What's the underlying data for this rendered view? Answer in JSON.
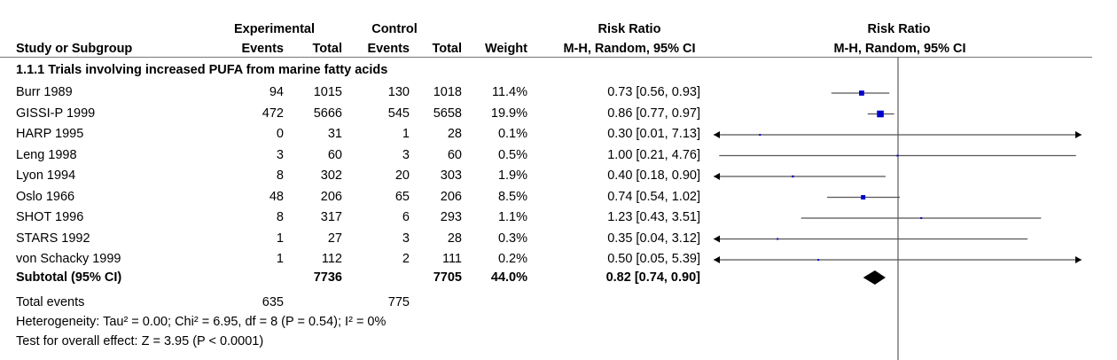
{
  "header": {
    "experimental": "Experimental",
    "control": "Control",
    "rr_left": "Risk Ratio",
    "rr_right": "Risk Ratio",
    "study_col": "Study or Subgroup",
    "events": "Events",
    "total": "Total",
    "events2": "Events",
    "total2": "Total",
    "weight": "Weight",
    "method_left": "M-H, Random, 95% CI",
    "method_right": "M-H, Random, 95% CI"
  },
  "subgroup_title": "1.1.1 Trials involving increased PUFA from marine fatty acids",
  "studies": [
    {
      "name": "Burr 1989",
      "exp_events": "94",
      "exp_total": "1015",
      "ctl_events": "130",
      "ctl_total": "1018",
      "weight": "11.4%",
      "ci_text": "0.73 [0.56, 0.93]"
    },
    {
      "name": "GISSI-P 1999",
      "exp_events": "472",
      "exp_total": "5666",
      "ctl_events": "545",
      "ctl_total": "5658",
      "weight": "19.9%",
      "ci_text": "0.86 [0.77, 0.97]"
    },
    {
      "name": "HARP 1995",
      "exp_events": "0",
      "exp_total": "31",
      "ctl_events": "1",
      "ctl_total": "28",
      "weight": "0.1%",
      "ci_text": "0.30 [0.01, 7.13]"
    },
    {
      "name": "Leng 1998",
      "exp_events": "3",
      "exp_total": "60",
      "ctl_events": "3",
      "ctl_total": "60",
      "weight": "0.5%",
      "ci_text": "1.00 [0.21, 4.76]"
    },
    {
      "name": "Lyon 1994",
      "exp_events": "8",
      "exp_total": "302",
      "ctl_events": "20",
      "ctl_total": "303",
      "weight": "1.9%",
      "ci_text": "0.40 [0.18, 0.90]"
    },
    {
      "name": "Oslo 1966",
      "exp_events": "48",
      "exp_total": "206",
      "ctl_events": "65",
      "ctl_total": "206",
      "weight": "8.5%",
      "ci_text": "0.74 [0.54, 1.02]"
    },
    {
      "name": "SHOT 1996",
      "exp_events": "8",
      "exp_total": "317",
      "ctl_events": "6",
      "ctl_total": "293",
      "weight": "1.1%",
      "ci_text": "1.23 [0.43, 3.51]"
    },
    {
      "name": "STARS 1992",
      "exp_events": "1",
      "exp_total": "27",
      "ctl_events": "3",
      "ctl_total": "28",
      "weight": "0.3%",
      "ci_text": "0.35 [0.04, 3.12]"
    },
    {
      "name": "von Schacky 1999",
      "exp_events": "1",
      "exp_total": "112",
      "ctl_events": "2",
      "ctl_total": "111",
      "weight": "0.2%",
      "ci_text": "0.50 [0.05, 5.39]"
    }
  ],
  "subtotal": {
    "name": "Subtotal (95% CI)",
    "exp_total": "7736",
    "ctl_total": "7705",
    "weight": "44.0%",
    "ci_text": "0.82 [0.74, 0.90]"
  },
  "total_events": {
    "label": "Total events",
    "exp": "635",
    "ctl": "775"
  },
  "heterogeneity": "Heterogeneity: Tau² = 0.00; Chi² = 6.95, df = 8 (P = 0.54); I² = 0%",
  "overall_effect": "Test for overall effect: Z = 3.95 (P < 0.0001)",
  "colors": {
    "marker": "#0000cc",
    "line": "#555555",
    "diamond": "#000000"
  },
  "chart_data": {
    "type": "forest",
    "scale": "log",
    "xlim": [
      0.2,
      5
    ],
    "null_value": 1,
    "series": [
      {
        "study": "Burr 1989",
        "rr": 0.73,
        "lo": 0.56,
        "hi": 0.93,
        "weight": 11.4
      },
      {
        "study": "GISSI-P 1999",
        "rr": 0.86,
        "lo": 0.77,
        "hi": 0.97,
        "weight": 19.9
      },
      {
        "study": "HARP 1995",
        "rr": 0.3,
        "lo": 0.01,
        "hi": 7.13,
        "weight": 0.1
      },
      {
        "study": "Leng 1998",
        "rr": 1.0,
        "lo": 0.21,
        "hi": 4.76,
        "weight": 0.5
      },
      {
        "study": "Lyon 1994",
        "rr": 0.4,
        "lo": 0.18,
        "hi": 0.9,
        "weight": 1.9
      },
      {
        "study": "Oslo 1966",
        "rr": 0.74,
        "lo": 0.54,
        "hi": 1.02,
        "weight": 8.5
      },
      {
        "study": "SHOT 1996",
        "rr": 1.23,
        "lo": 0.43,
        "hi": 3.51,
        "weight": 1.1
      },
      {
        "study": "STARS 1992",
        "rr": 0.35,
        "lo": 0.04,
        "hi": 3.12,
        "weight": 0.3
      },
      {
        "study": "von Schacky 1999",
        "rr": 0.5,
        "lo": 0.05,
        "hi": 5.39,
        "weight": 0.2
      }
    ],
    "pooled": {
      "rr": 0.82,
      "lo": 0.74,
      "hi": 0.9
    }
  }
}
